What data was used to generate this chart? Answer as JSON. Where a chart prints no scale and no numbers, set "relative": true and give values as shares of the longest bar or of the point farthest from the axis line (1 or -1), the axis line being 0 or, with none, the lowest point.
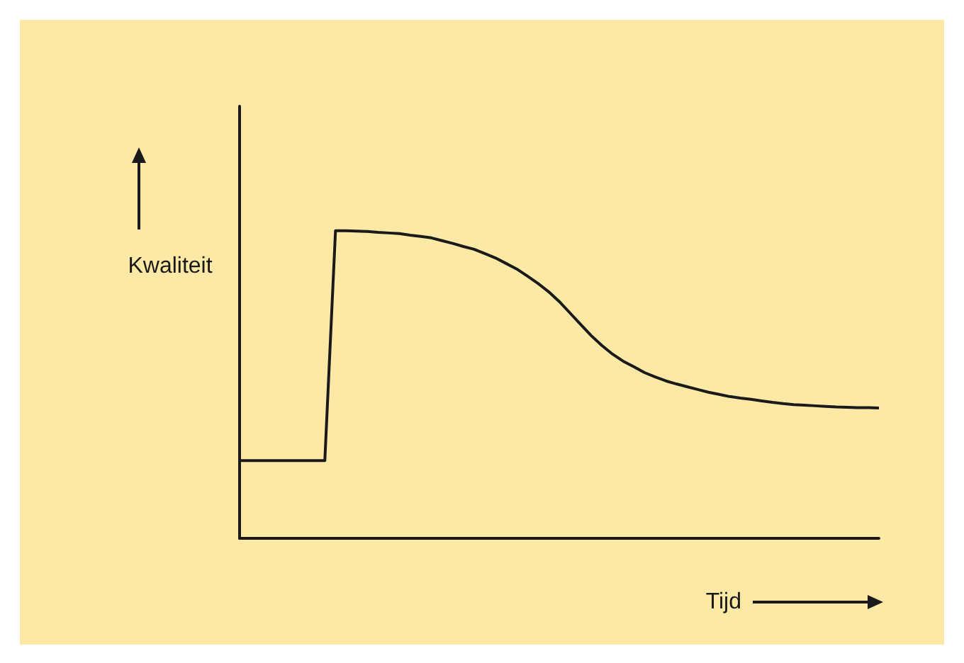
{
  "chart_data": {
    "type": "line",
    "relative": true,
    "xlabel": "Tijd",
    "ylabel": "Kwaliteit",
    "color": "#1a1a1a",
    "marker": "none",
    "line_style": "solid",
    "categories": [
      null,
      null,
      null,
      null,
      null,
      null,
      null,
      null,
      null,
      null,
      null,
      null,
      null,
      null,
      null,
      null,
      null,
      null,
      null,
      null,
      null,
      null,
      null,
      null,
      null,
      null,
      null,
      null,
      null,
      null,
      null,
      null,
      null,
      null,
      null,
      null,
      null,
      null,
      null,
      null,
      null,
      null,
      null,
      null,
      null,
      null,
      null,
      null,
      null,
      null,
      null,
      null,
      null,
      null,
      null,
      null,
      null,
      null,
      null,
      null,
      null
    ],
    "values": [
      0.253,
      0.253,
      0.253,
      0.253,
      0.253,
      0.253,
      0.253,
      0.253,
      0.253,
      1.0,
      1.0,
      0.999,
      0.998,
      0.995,
      0.993,
      0.991,
      0.986,
      0.982,
      0.977,
      0.968,
      0.959,
      0.949,
      0.94,
      0.926,
      0.912,
      0.894,
      0.876,
      0.853,
      0.829,
      0.802,
      0.77,
      0.733,
      0.696,
      0.659,
      0.627,
      0.599,
      0.576,
      0.558,
      0.539,
      0.525,
      0.512,
      0.502,
      0.493,
      0.484,
      0.475,
      0.468,
      0.461,
      0.456,
      0.452,
      0.447,
      0.442,
      0.438,
      0.435,
      0.433,
      0.431,
      0.429,
      0.427,
      0.426,
      0.425,
      0.425,
      0.424
    ]
  }
}
